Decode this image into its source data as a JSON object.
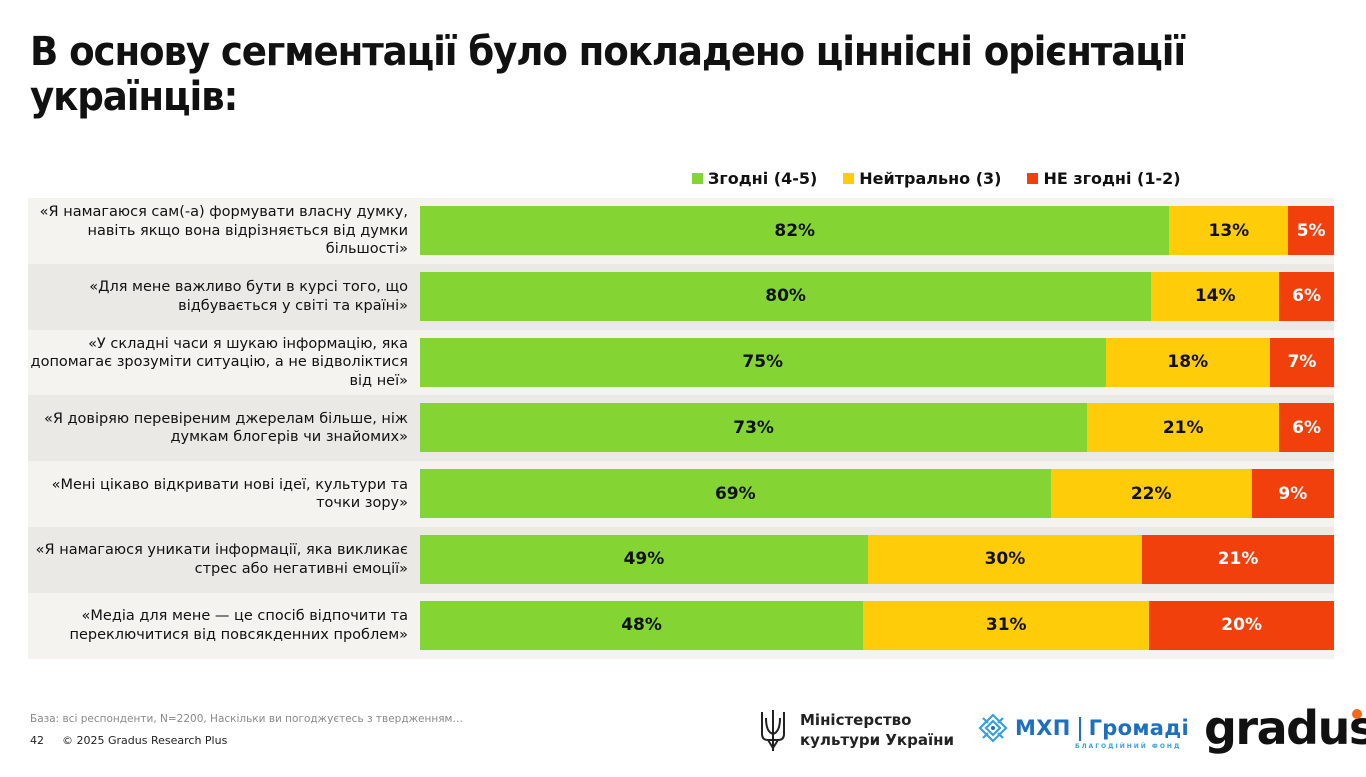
{
  "title": "В основу сегментації було покладено ціннісні орієнтації українців:",
  "legend": [
    {
      "label": "Згодні (4-5)",
      "color": "#84d433"
    },
    {
      "label": "Нейтрально (3)",
      "color": "#ffcc0a"
    },
    {
      "label": "НЕ згодні (1-2)",
      "color": "#f2400d"
    }
  ],
  "chart_data": {
    "type": "bar",
    "orientation": "horizontal",
    "stacked": true,
    "percent_stacked": true,
    "title": "",
    "xlabel": "",
    "ylabel": "",
    "legend_position": "top-right",
    "grid": false,
    "categories": [
      "«Я намагаюся сам(-а) формувати власну думку, навіть якщо вона відрізняється від думки більшості»",
      "«Для мене важливо бути в курсі того, що відбувається у світі та країні»",
      "«У складні часи я шукаю інформацію, яка допомагає зрозуміти ситуацію, а не відволіктися від неї»",
      "«Я довіряю перевіреним джерелам більше, ніж думкам блогерів чи знайомих»",
      "«Мені цікаво відкривати нові ідеї, культури та точки зору»",
      "«Я намагаюся уникати інформації, яка викликає стрес або негативні емоції»",
      "«Медіа для мене — це спосіб відпочити та переключитися від повсякденних проблем»"
    ],
    "series": [
      {
        "name": "Згодні (4-5)",
        "color": "#84d433",
        "values": [
          82,
          80,
          75,
          73,
          69,
          49,
          48
        ]
      },
      {
        "name": "Нейтрально (3)",
        "color": "#ffcc0a",
        "values": [
          13,
          14,
          18,
          21,
          22,
          30,
          31
        ]
      },
      {
        "name": "НЕ згодні (1-2)",
        "color": "#f2400d",
        "values": [
          5,
          6,
          7,
          6,
          9,
          21,
          20
        ]
      }
    ],
    "value_suffix": "%"
  },
  "footer": {
    "base": "База: всі респонденти, N=2200, Наскільки ви погоджуєтесь з твердженням…",
    "page": "42",
    "copyright": "© 2025 Gradus Research Plus"
  },
  "logos": {
    "ministry_line1": "Міністерство",
    "ministry_line2": "культури України",
    "mhp_left": "МХП",
    "mhp_right": "Громаді",
    "mhp_sub": "БЛАГОДІЙНИЙ ФОНД",
    "gradus": "gradus"
  }
}
